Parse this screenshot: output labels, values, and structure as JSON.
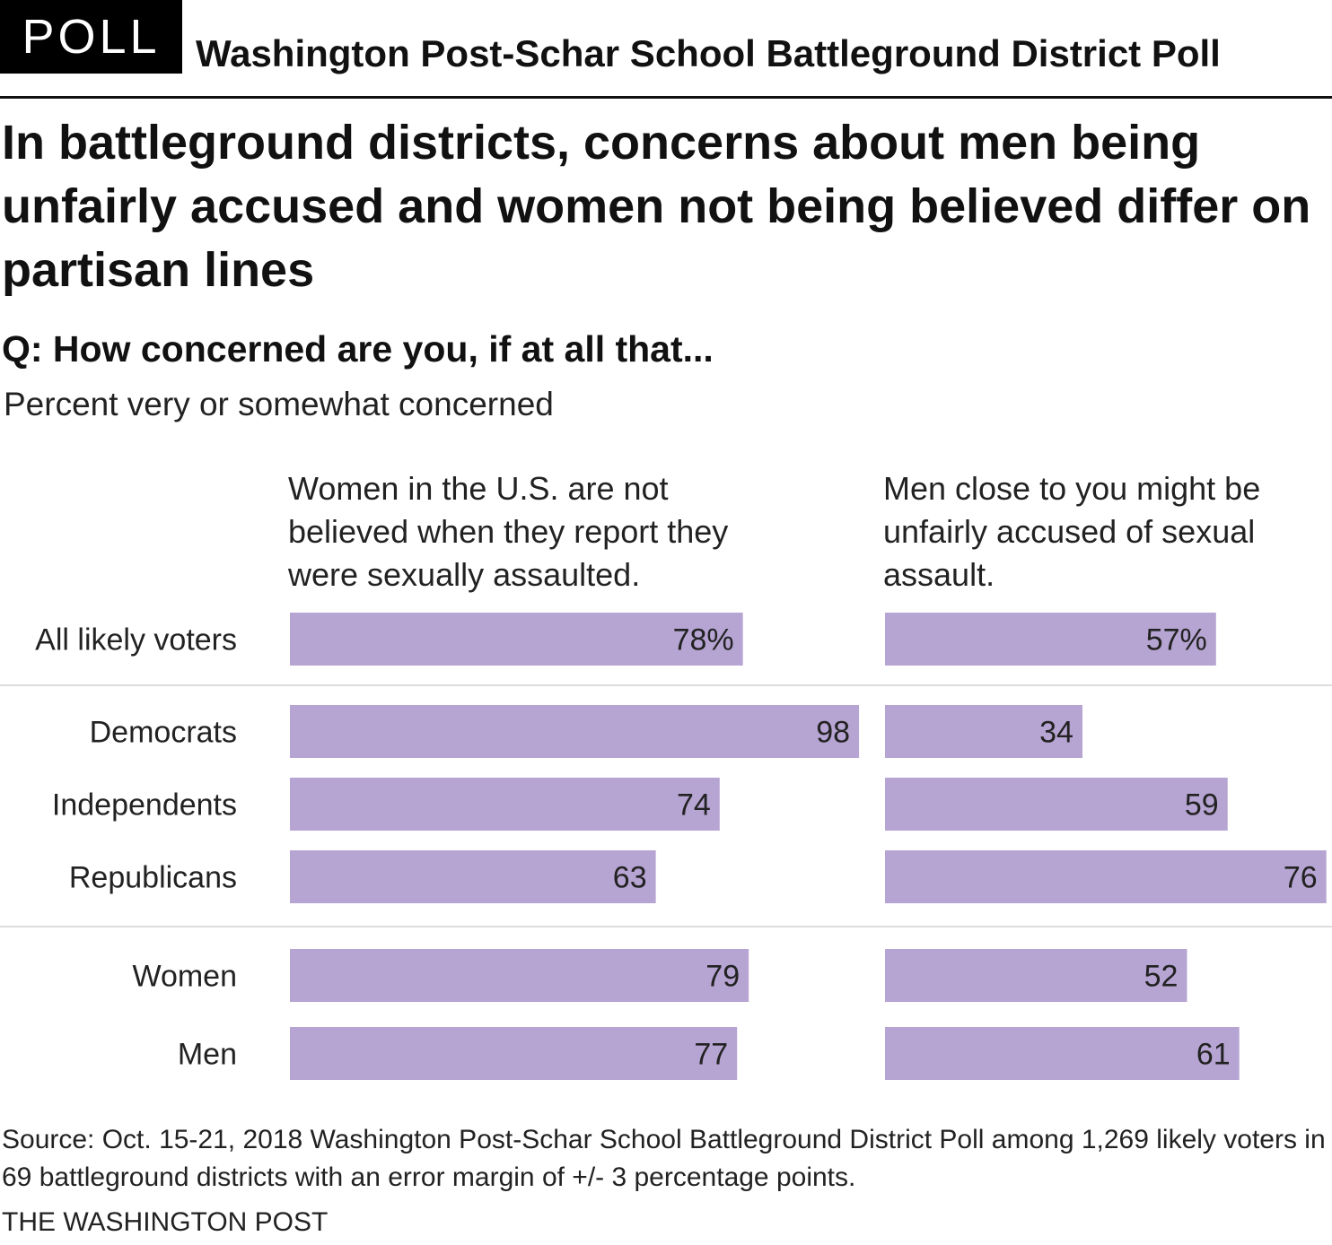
{
  "header": {
    "badge": "POLL",
    "poll_name": "Washington Post-Schar School Battleground District Poll"
  },
  "headline": "In battleground districts, concerns about men being unfairly accused and women not being believed differ on partisan lines",
  "question": "Q: How concerned are you, if at all that...",
  "subtitle": "Percent very or somewhat concerned",
  "chart_data": {
    "type": "bar",
    "orientation": "horizontal",
    "title": "In battleground districts, concerns about men being unfairly accused and women not being believed differ on partisan lines",
    "subtitle": "Percent very or somewhat concerned",
    "categories": [
      "All likely voters",
      "Democrats",
      "Independents",
      "Republicans",
      "Women",
      "Men"
    ],
    "groups": [
      [
        "All likely voters"
      ],
      [
        "Democrats",
        "Independents",
        "Republicans"
      ],
      [
        "Women",
        "Men"
      ]
    ],
    "series": [
      {
        "name": "Women in the U.S. are not believed when they report they were sexually assaulted.",
        "title_lines": [
          "Women in the U.S. are not",
          "believed when they report they",
          "were sexually assaulted."
        ],
        "values": [
          78,
          98,
          74,
          63,
          79,
          77
        ],
        "labels": [
          "78%",
          "98",
          "74",
          "63",
          "79",
          "77"
        ]
      },
      {
        "name": "Men close to you might be unfairly accused of sexual assault.",
        "title_lines": [
          "Men close to you might be",
          "unfairly accused of sexual",
          "assault."
        ],
        "values": [
          57,
          34,
          59,
          76,
          52,
          61
        ],
        "labels": [
          "57%",
          "34",
          "59",
          "76",
          "52",
          "61"
        ]
      }
    ],
    "unit": "%",
    "xlim": [
      0,
      100
    ],
    "bar_color": "#b6a4d2",
    "grid": false,
    "legend": "none"
  },
  "source": "Source: Oct. 15-21, 2018 Washington Post-Schar School Battleground District Poll among 1,269 likely voters in 69 battleground districts with an error margin of +/- 3 percentage points.",
  "credit": "THE WASHINGTON POST"
}
